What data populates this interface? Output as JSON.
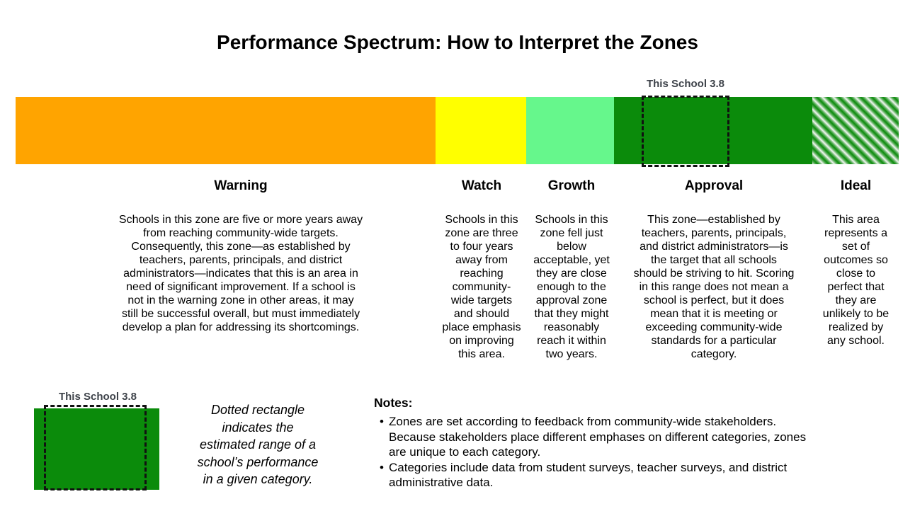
{
  "title": "Performance Spectrum: How to Interpret the Zones",
  "school_marker": {
    "label": "This School 3.8"
  },
  "zones": [
    {
      "label": "Warning",
      "color": "#FFA400",
      "description": "Schools in this zone are five or more years away\nfrom reaching community-wide targets.\nConsequently, this zone—as established by\nteachers, parents, principals, and district\nadministrators—indicates that this is an area in\nneed of significant improvement. If a school is\nnot in the warning zone in other areas, it may\nstill be successful overall, but must immediately\ndevelop a plan for addressing its shortcomings."
    },
    {
      "label": "Watch",
      "color": "#FFFF00",
      "description": "Schools in this\nzone are three\nto four years\naway from\nreaching\ncommunity-\nwide targets\nand should\nplace emphasis\non improving\nthis area."
    },
    {
      "label": "Growth",
      "color": "#66F78C",
      "description": "Schools in this\nzone fell just\nbelow\nacceptable, yet\nthey are close\nenough to the\napproval zone\nthat they might\nreasonably\nreach it within\ntwo years."
    },
    {
      "label": "Approval",
      "color": "#0B8B0B",
      "description": "This zone—established by\nteachers, parents, principals,\nand district administrators—is\nthe target that all schools\nshould be striving to hit. Scoring\nin this range does not mean a\nschool is perfect, but it does\nmean that it is meeting or\nexceeding community-wide\nstandards for a particular\ncategory."
    },
    {
      "label": "Ideal",
      "color": "#0B8B0B",
      "pattern": "diagonal-green-stripes",
      "description": "This area\nrepresents a\nset of\noutcomes so\nclose to\nperfect that\nthey are\nunlikely to be\nrealized by\nany school."
    }
  ],
  "legend": {
    "marker_label": "This School 3.8",
    "swatch_color": "#0B8B0B",
    "caption": "Dotted rectangle\nindicates the\nestimated range of a\nschool’s performance\nin a given category."
  },
  "notes": {
    "heading": "Notes:",
    "items": [
      "Zones are set according to feedback from community-wide stakeholders.\nBecause stakeholders place different emphases on different categories, zones\nare unique to each category.",
      "Categories include data from student surveys, teacher surveys, and district\nadministrative data."
    ]
  }
}
